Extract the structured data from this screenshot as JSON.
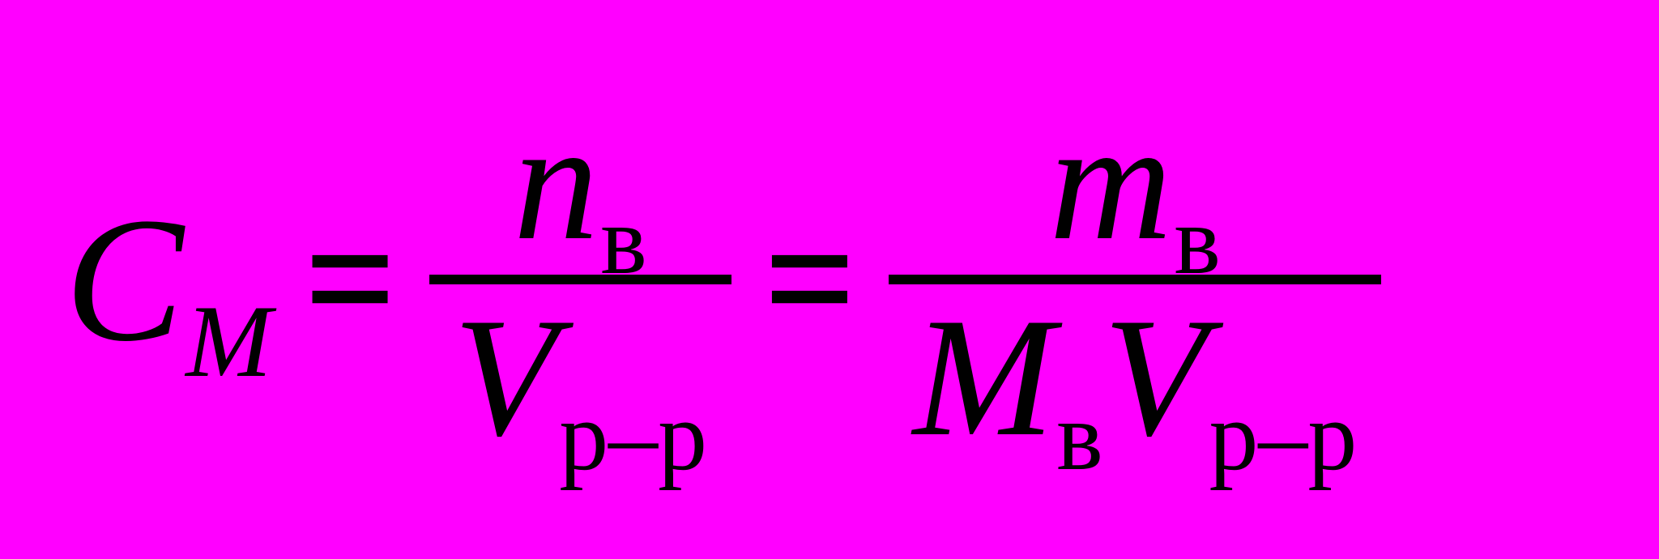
{
  "background_color": "#ff00ff",
  "text_color": "#000000",
  "font_family": "Times New Roman",
  "equation": {
    "lhs": {
      "base": "C",
      "subscript": "M",
      "subscript_italic": true
    },
    "eq1": "=",
    "frac1": {
      "numerator": {
        "base": "n",
        "subscript": "в"
      },
      "denominator": {
        "terms": [
          {
            "base": "V",
            "subscript": "р–р"
          }
        ]
      }
    },
    "eq2": "=",
    "frac2": {
      "numerator": {
        "base": "m",
        "subscript": "в"
      },
      "denominator": {
        "terms": [
          {
            "base": "M",
            "subscript": "в"
          },
          {
            "base": "V",
            "subscript": "р–р"
          }
        ]
      }
    }
  }
}
